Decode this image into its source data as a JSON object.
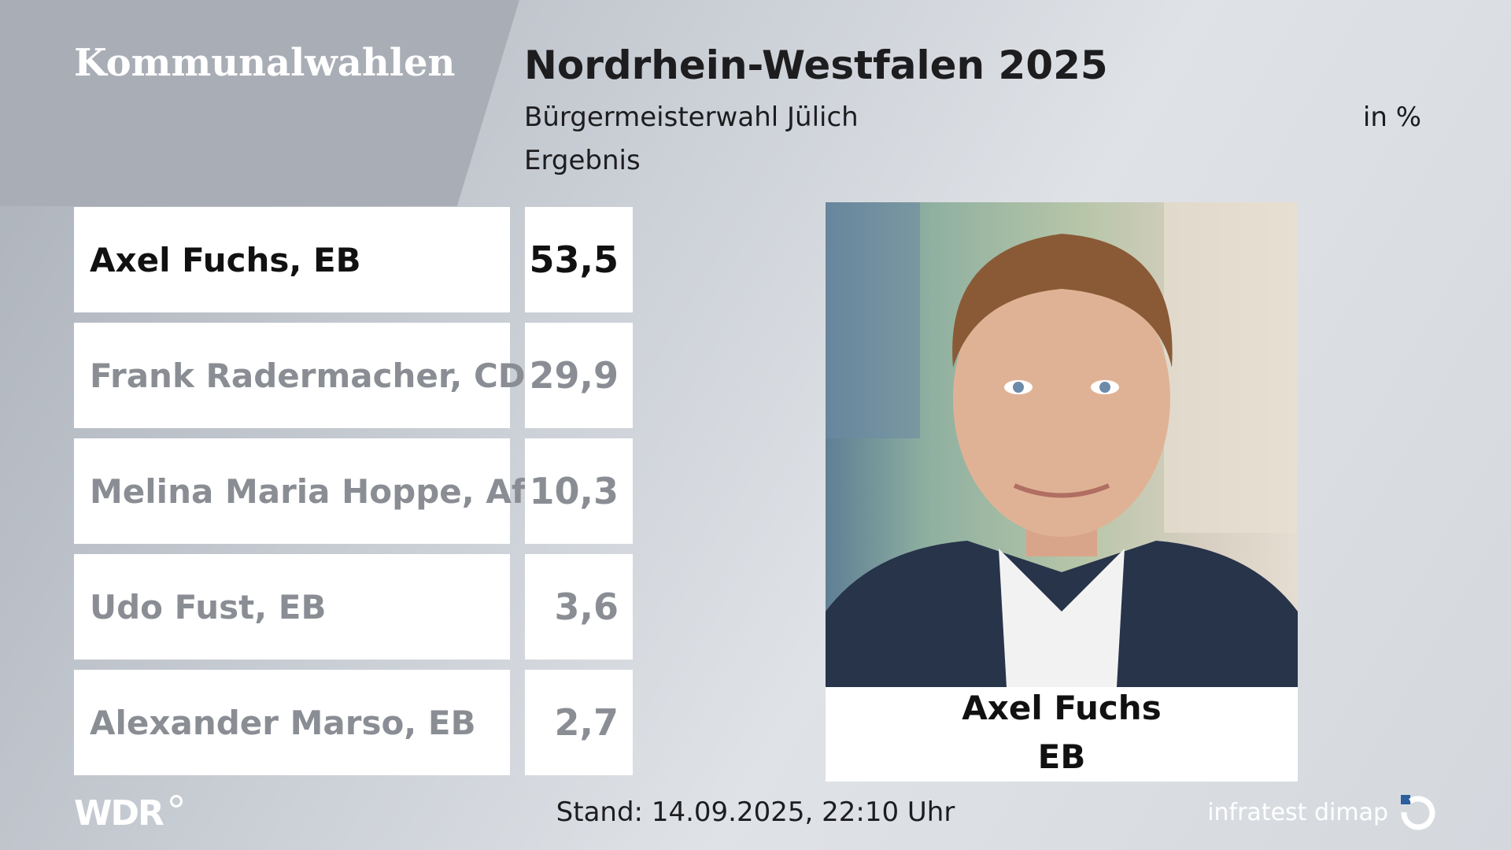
{
  "header": {
    "brand": "Kommunalwahlen",
    "title": "Nordrhein-Westfalen 2025",
    "subtitle": "Bürgermeisterwahl Jülich",
    "unit": "in %",
    "result_label": "Ergebnis"
  },
  "results": [
    {
      "candidate": "Axel Fuchs, EB",
      "value": "53,5"
    },
    {
      "candidate": "Frank Radermacher, CDU",
      "value": "29,9"
    },
    {
      "candidate": "Melina Maria Hoppe, AfD",
      "value": "10,3"
    },
    {
      "candidate": "Udo Fust, EB",
      "value": "3,6"
    },
    {
      "candidate": "Alexander Marso, EB",
      "value": "2,7"
    }
  ],
  "winner": {
    "name": "Axel Fuchs",
    "party": "EB"
  },
  "footer": {
    "broadcaster": "WDR",
    "stand": "Stand: 14.09.2025, 22:10 Uhr",
    "pollster": "infratest dimap"
  },
  "colors": {
    "winner_text": "#111111",
    "other_text": "#8a8e94",
    "row_background": "#ffffff"
  }
}
